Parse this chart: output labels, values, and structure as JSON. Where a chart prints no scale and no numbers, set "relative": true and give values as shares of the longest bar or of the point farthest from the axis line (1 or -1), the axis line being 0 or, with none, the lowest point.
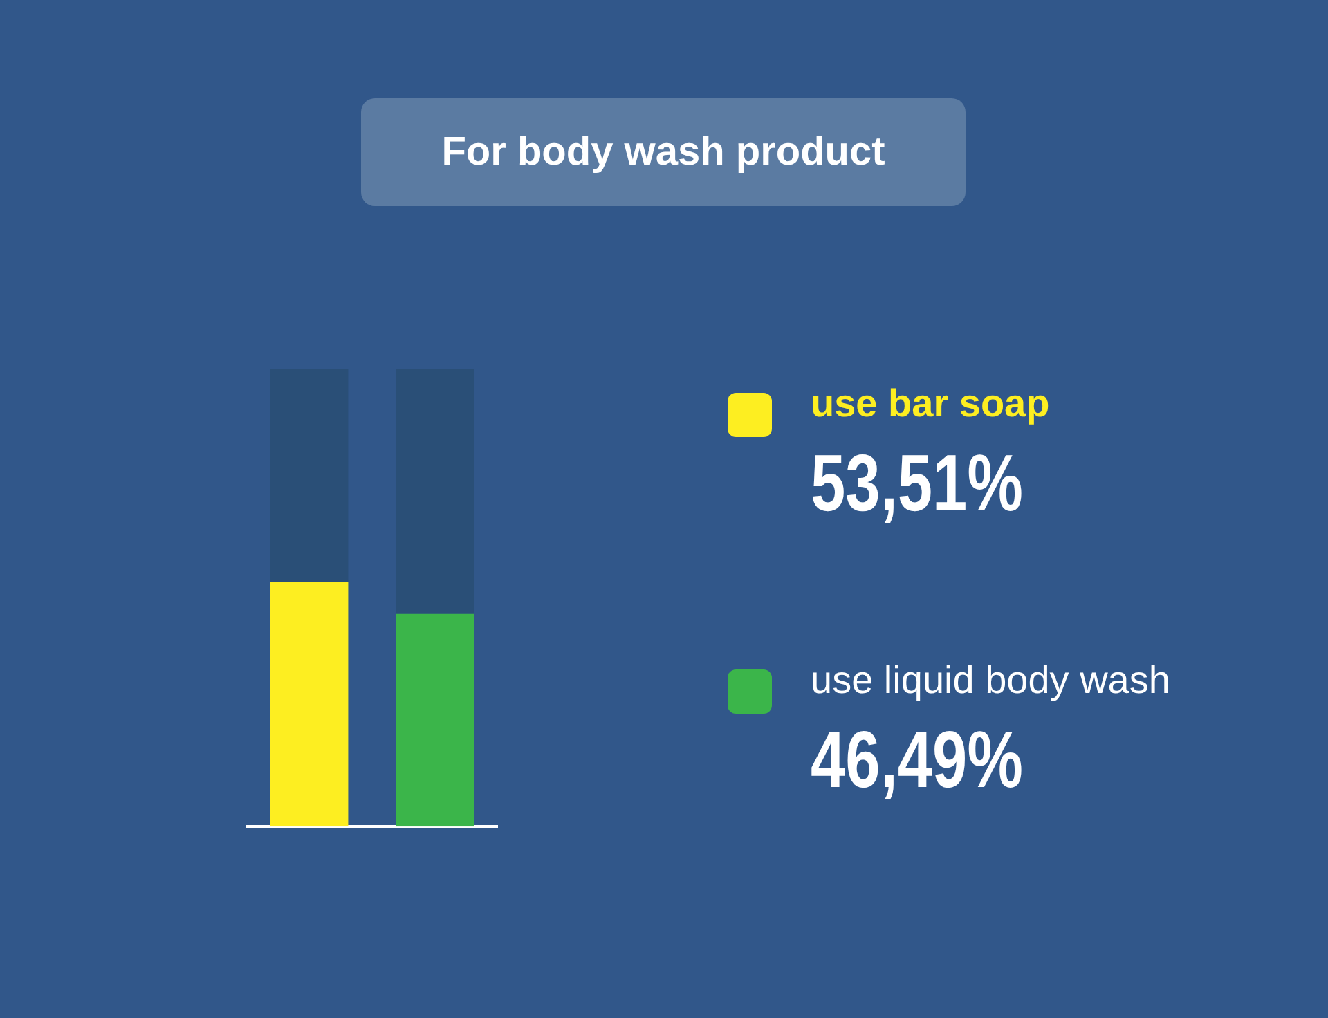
{
  "chart_data": {
    "type": "bar",
    "title": "For body wash product",
    "categories": [
      null,
      null
    ],
    "stacked": true,
    "relative": true,
    "legend": "right",
    "grid": false,
    "annotations": [
      "53,51%",
      "46,49%"
    ],
    "series": [
      {
        "name": "use bar soap",
        "color": "#fdee21",
        "values": [
          0.5351,
          null
        ]
      },
      {
        "name": "use liquid body wash",
        "color": "#3bb54a",
        "values": [
          null,
          0.4649
        ]
      },
      {
        "color": "#2a4f77",
        "values": [
          0.4649,
          0.5351
        ]
      }
    ]
  }
}
